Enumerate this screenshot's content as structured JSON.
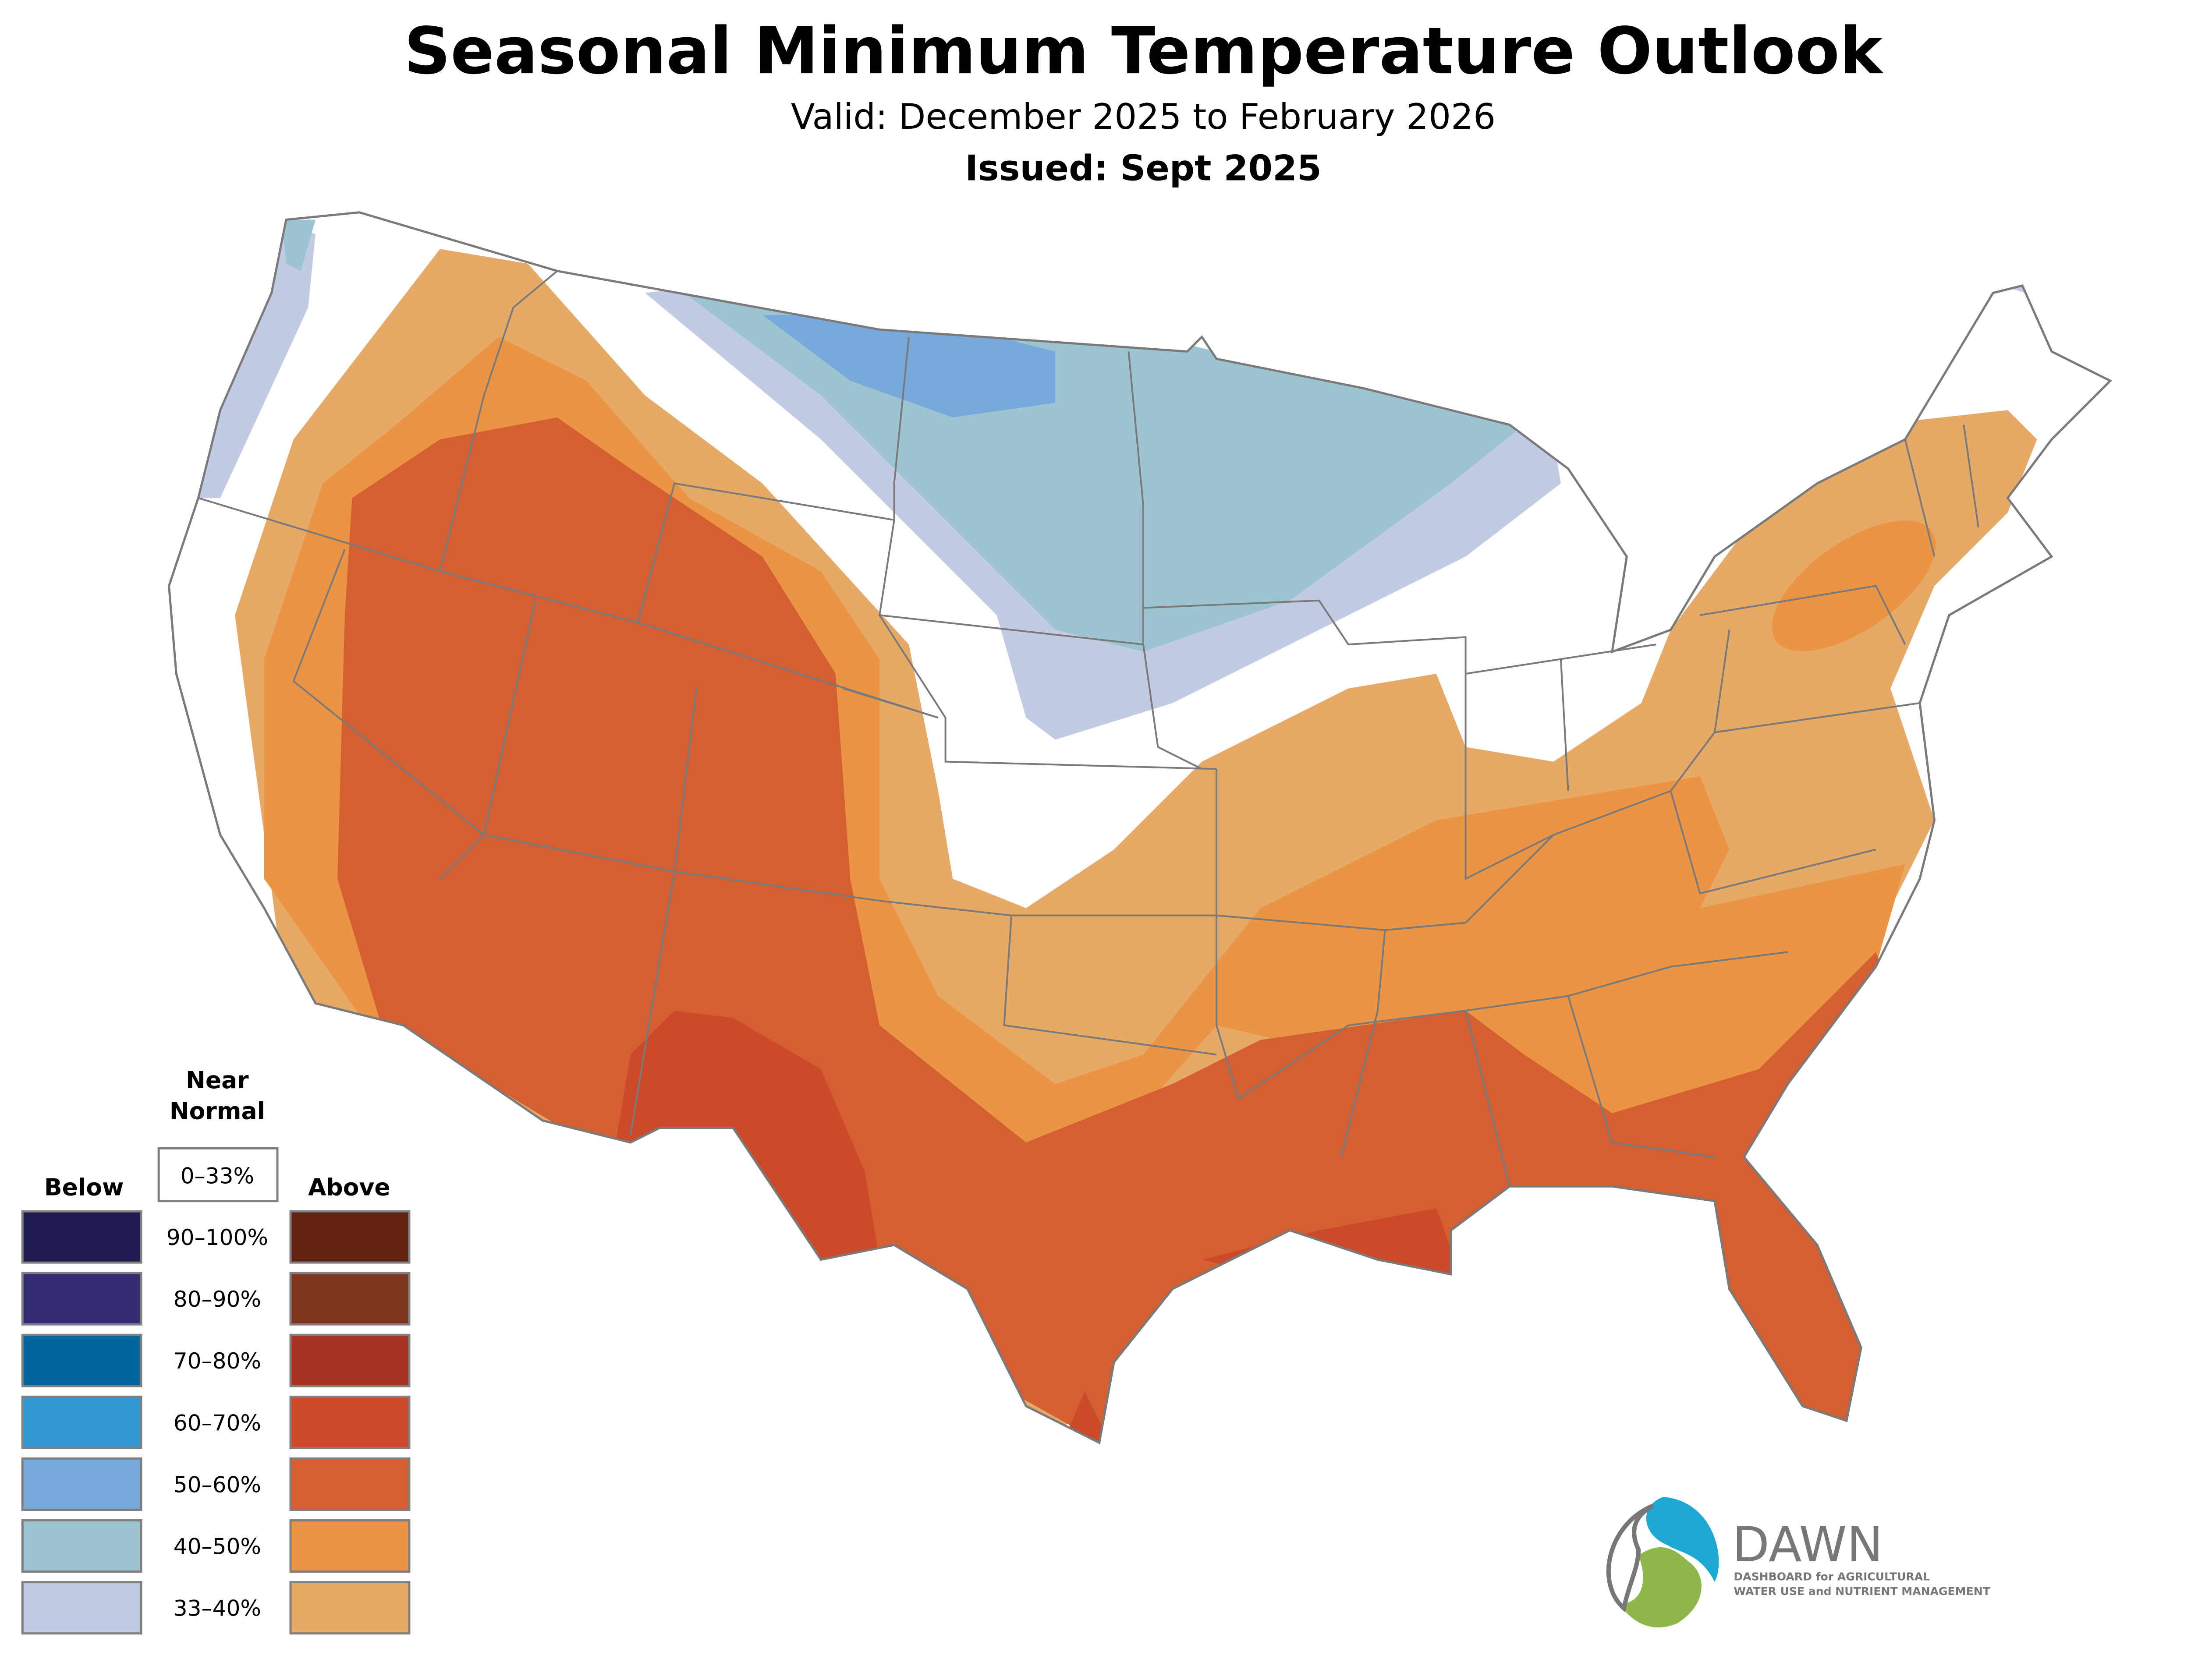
{
  "header": {
    "title": "Seasonal Minimum Temperature Outlook",
    "valid": "Valid: December 2025 to February 2026",
    "issued": "Issued: Sept 2025"
  },
  "legend": {
    "near_normal_line1": "Near",
    "near_normal_line2": "Normal",
    "near_normal_range": "0–33%",
    "below_label": "Below",
    "above_label": "Above",
    "ranges": [
      "90–100%",
      "80–90%",
      "70–80%",
      "60–70%",
      "50–60%",
      "40–50%",
      "33–40%"
    ],
    "below_colors": [
      "#1F1A4F",
      "#332C73",
      "#01669C",
      "#3399D4",
      "#77AADB",
      "#9CC5D1",
      "#C3CAE3"
    ],
    "above_colors": [
      "#632311",
      "#7F341E",
      "#A53425",
      "#CC4A29",
      "#D45F33",
      "#EB9544",
      "#E6A966"
    ]
  },
  "logo": {
    "name": "DAWN",
    "line1": "DASHBOARD for AGRICULTURAL",
    "line2": "WATER USE and NUTRIENT MANAGEMENT"
  }
}
